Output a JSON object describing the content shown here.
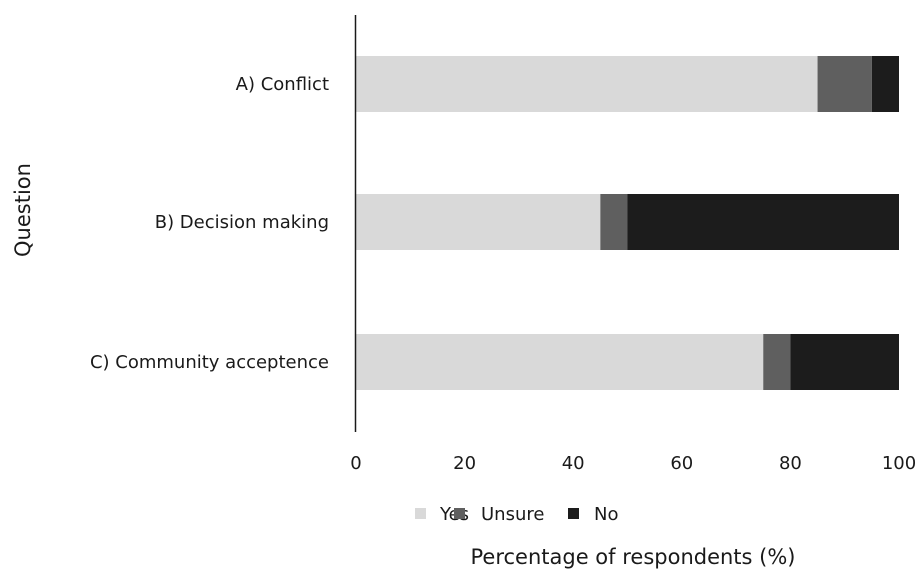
{
  "chart_data": {
    "type": "bar",
    "orientation": "horizontal",
    "stacked": true,
    "categories": [
      "A) Conflict",
      "B) Decision making",
      "C) Community acceptence"
    ],
    "series": [
      {
        "name": "Yes",
        "values": [
          85,
          45,
          75
        ],
        "color": "#d9d9d9"
      },
      {
        "name": "Unsure",
        "values": [
          10,
          5,
          5
        ],
        "color": "#5f5f5f"
      },
      {
        "name": "No",
        "values": [
          5,
          50,
          20
        ],
        "color": "#1c1c1c"
      }
    ],
    "xlabel": "Percentage of respondents (%)",
    "ylabel": "Question",
    "xlim": [
      0,
      100
    ],
    "xticks": [
      0,
      20,
      40,
      60,
      80,
      100
    ],
    "grid": false,
    "legend_position": "bottom"
  }
}
